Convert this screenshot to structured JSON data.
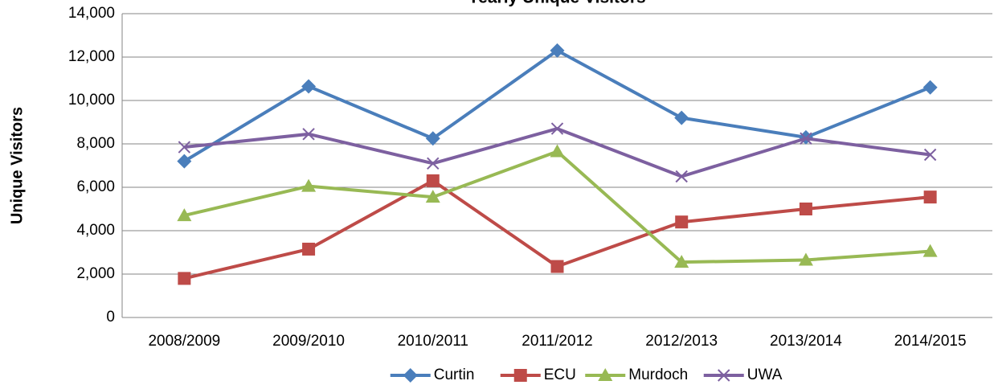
{
  "chart_data": {
    "type": "line",
    "title": "Yearly Unique Visitors",
    "y_label": "Unique Visitors",
    "categories": [
      "2008/2009",
      "2009/2010",
      "2010/2011",
      "2011/2012",
      "2012/2013",
      "2013/2014",
      "2014/2015"
    ],
    "series": [
      {
        "name": "Curtin",
        "color": "#4a7ebb",
        "marker": "diamond",
        "values": [
          7200,
          10650,
          8250,
          12300,
          9200,
          8300,
          10600
        ]
      },
      {
        "name": "ECU",
        "color": "#be4b48",
        "marker": "square",
        "values": [
          1800,
          3150,
          6300,
          2350,
          4400,
          5000,
          5550
        ]
      },
      {
        "name": "Murdoch",
        "color": "#98b954",
        "marker": "triangle",
        "values": [
          4700,
          6050,
          5550,
          7650,
          2550,
          2650,
          3050
        ]
      },
      {
        "name": "UWA",
        "color": "#7d60a0",
        "marker": "x",
        "values": [
          7850,
          8450,
          7100,
          8700,
          6500,
          8250,
          7500
        ]
      }
    ],
    "ylim": [
      0,
      14000
    ],
    "yticks": [
      0,
      {
        "value": 2000,
        "label": "2,000"
      },
      {
        "value": 4000,
        "label": "4,000"
      },
      {
        "value": 6000,
        "label": "6,000"
      },
      {
        "value": 8000,
        "label": "8,000"
      },
      {
        "value": 10000,
        "label": "10,000"
      },
      {
        "value": 12000,
        "label": "12,000"
      },
      {
        "value": 14000,
        "label": "14,000"
      }
    ],
    "grid": true,
    "legend": "bottom"
  }
}
